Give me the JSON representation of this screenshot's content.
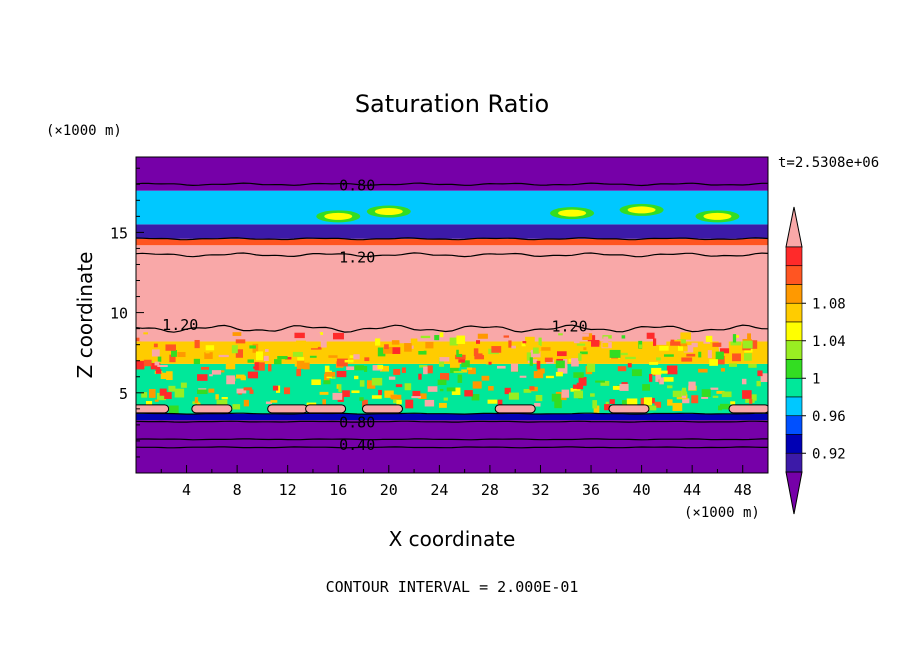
{
  "chart_data": {
    "type": "heatmap",
    "title": "Saturation Ratio",
    "xlabel": "X coordinate",
    "ylabel": "Z coordinate",
    "x_unit": "(×1000 m)",
    "y_unit": "(×1000 m)",
    "xlim": [
      0,
      50
    ],
    "ylim": [
      0,
      19.7
    ],
    "x_ticks": [
      4,
      8,
      12,
      16,
      20,
      24,
      28,
      32,
      36,
      40,
      44,
      48
    ],
    "y_ticks": [
      5,
      10,
      15
    ],
    "time_label": "t=2.5308e+06",
    "footer": "CONTOUR INTERVAL = 2.000E-01",
    "colorbar": {
      "tick_labels": [
        "0.92",
        "0.96",
        "1",
        "1.04",
        "1.08"
      ],
      "colors": [
        "#7600a8",
        "#3c1aa8",
        "#0000b4",
        "#0050ff",
        "#00c8ff",
        "#00e89a",
        "#33dd22",
        "#99ee22",
        "#ffff00",
        "#ffcc00",
        "#ff9900",
        "#ff5522",
        "#ff2a2a",
        "#f9a8a8"
      ]
    },
    "contour_labels": [
      {
        "text": "0.80",
        "x": 17.5,
        "z": 18.0
      },
      {
        "text": "1.20",
        "x": 17.5,
        "z": 13.5
      },
      {
        "text": "1.20",
        "x": 3.5,
        "z": 9.3
      },
      {
        "text": "1.20",
        "x": 34.3,
        "z": 9.2
      },
      {
        "text": "0.80",
        "x": 17.5,
        "z": 3.2
      },
      {
        "text": "0.40",
        "x": 17.5,
        "z": 1.8
      }
    ]
  }
}
